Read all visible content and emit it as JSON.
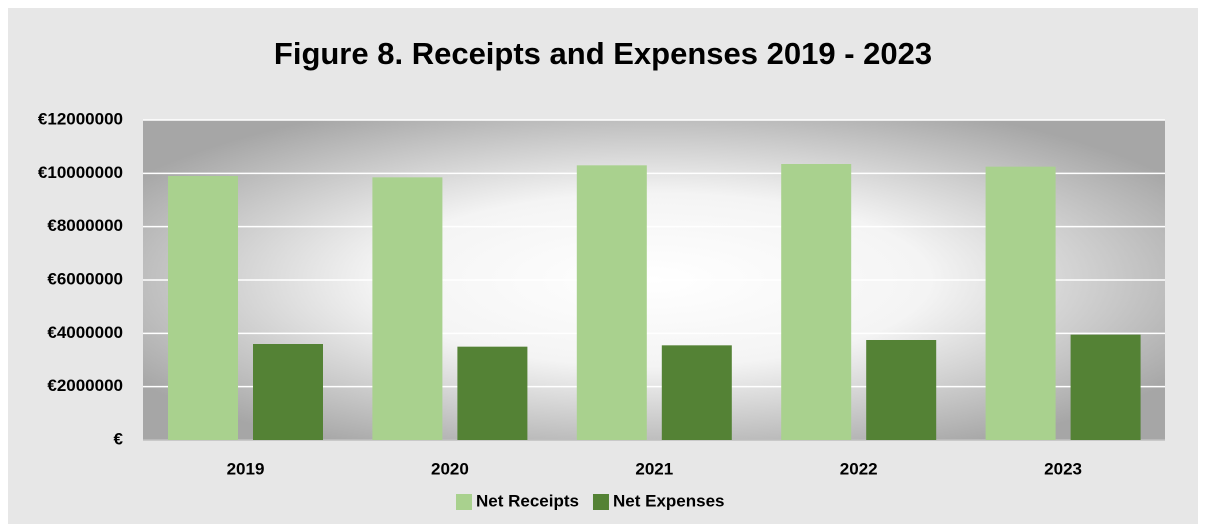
{
  "chart_data": {
    "type": "bar",
    "title": "Figure 8. Receipts and Expenses 2019 - 2023",
    "categories": [
      "2019",
      "2020",
      "2021",
      "2022",
      "2023"
    ],
    "series": [
      {
        "name": "Net Receipts",
        "color": "#a9d18e",
        "values": [
          9900000,
          9850000,
          10300000,
          10350000,
          10250000
        ]
      },
      {
        "name": "Net Expenses",
        "color": "#548235",
        "values": [
          3600000,
          3500000,
          3550000,
          3750000,
          3950000
        ]
      }
    ],
    "ylim": [
      0,
      12000000
    ],
    "yticks": [
      {
        "value": 0,
        "label": "€"
      },
      {
        "value": 2000000,
        "label": "€2000000"
      },
      {
        "value": 4000000,
        "label": "€4000000"
      },
      {
        "value": 6000000,
        "label": "€6000000"
      },
      {
        "value": 8000000,
        "label": "€8000000"
      },
      {
        "value": 10000000,
        "label": "€10000000"
      },
      {
        "value": 12000000,
        "label": "€12000000"
      }
    ],
    "grid": true,
    "legend": "bottom"
  }
}
